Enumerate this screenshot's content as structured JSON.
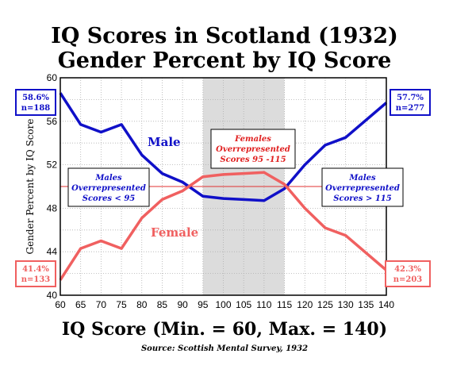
{
  "chart_data": {
    "type": "line",
    "title_line1": "IQ Scores in Scotland (1932)",
    "title_line2": "Gender Percent  by IQ Score",
    "xlabel": "IQ Score (Min. = 60, Max. = 140)",
    "ylabel": "Gender Percent by IQ Score",
    "source": "Source: Scottish Mental Survey, 1932",
    "x": [
      60,
      65,
      70,
      75,
      80,
      85,
      90,
      95,
      100,
      105,
      110,
      115,
      120,
      125,
      130,
      140
    ],
    "xticks": [
      60,
      65,
      70,
      75,
      80,
      85,
      90,
      95,
      100,
      105,
      110,
      115,
      120,
      125,
      130,
      135,
      140
    ],
    "yticks": [
      40,
      44,
      48,
      52,
      56,
      60
    ],
    "xlim": [
      60,
      140
    ],
    "ylim": [
      40,
      60
    ],
    "grid": true,
    "reference_line": 50,
    "shaded_range": [
      95,
      115
    ],
    "series": [
      {
        "name": "Male",
        "color": "#1010c8",
        "values": [
          58.6,
          55.7,
          55.0,
          55.7,
          52.9,
          51.2,
          50.4,
          49.1,
          48.9,
          48.8,
          48.7,
          49.8,
          52.0,
          53.8,
          54.5,
          57.7
        ]
      },
      {
        "name": "Female",
        "color": "#f06060",
        "values": [
          41.4,
          44.3,
          45.0,
          44.3,
          47.1,
          48.8,
          49.6,
          50.9,
          51.1,
          51.2,
          51.3,
          50.2,
          48.0,
          46.2,
          45.5,
          42.3
        ]
      }
    ],
    "annotations": {
      "male_start": {
        "value": "58.6%",
        "count": "n=188"
      },
      "male_end": {
        "value": "57.7%",
        "count": "n=277"
      },
      "female_start": {
        "value": "41.4%",
        "count": "n=133"
      },
      "female_end": {
        "value": "42.3%",
        "count": "n=203"
      },
      "box_left": [
        "Males",
        "Overrepresented",
        "Scores < 95"
      ],
      "box_center": [
        "Females",
        "Overrepresented",
        "Scores 95 -115"
      ],
      "box_right": [
        "Males",
        "Overrepresented",
        "Scores > 115"
      ]
    }
  }
}
